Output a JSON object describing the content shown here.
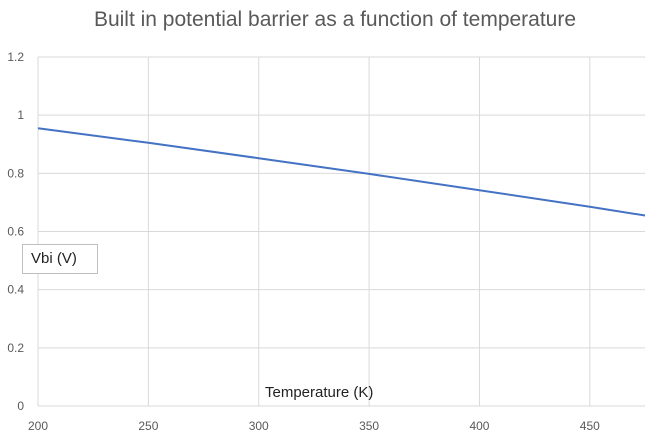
{
  "chart_data": {
    "type": "line",
    "title": "Built in potential barrier as a function of temperature",
    "xlabel": "Temperature (K)",
    "ylabel": "Vbi (V)",
    "xlim": [
      200,
      475
    ],
    "ylim": [
      0,
      1.2
    ],
    "x_ticks": [
      200,
      250,
      300,
      350,
      400,
      450
    ],
    "y_ticks": [
      0,
      0.2,
      0.4,
      0.6,
      0.8,
      1,
      1.2
    ],
    "grid": true,
    "series": [
      {
        "name": "Vbi",
        "color": "#4472C4",
        "x": [
          200,
          250,
          300,
          350,
          400,
          450,
          475
        ],
        "y": [
          0.955,
          0.905,
          0.852,
          0.798,
          0.742,
          0.685,
          0.655
        ]
      }
    ]
  }
}
